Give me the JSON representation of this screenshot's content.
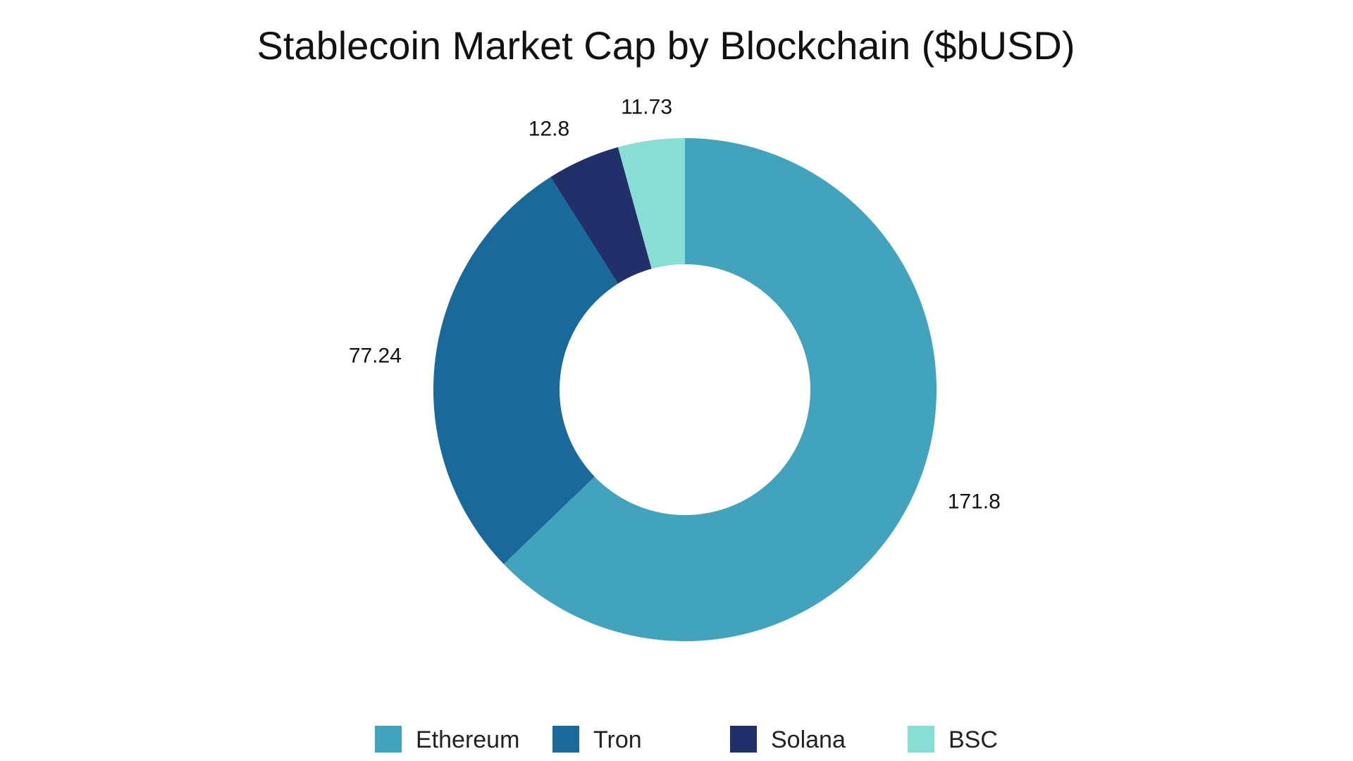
{
  "chart_data": {
    "type": "pie",
    "variant": "donut",
    "title": "Stablecoin Market Cap by Blockchain ($bUSD)",
    "categories": [
      "Ethereum",
      "Tron",
      "Solana",
      "BSC"
    ],
    "values": [
      171.8,
      77.24,
      12.8,
      11.73
    ],
    "value_labels": [
      "171.8",
      "77.24",
      "12.8",
      "11.73"
    ],
    "colors": [
      "#41a3bc",
      "#196a9b",
      "#213069",
      "#88ddd5"
    ],
    "legend_position": "bottom",
    "start_angle": "top",
    "direction": "clockwise"
  }
}
